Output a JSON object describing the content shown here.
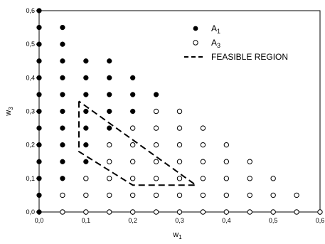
{
  "chart_data": {
    "type": "scatter",
    "title": "",
    "xlabel": "w",
    "xlabel_sub": "1",
    "ylabel": "w",
    "ylabel_sub": "3",
    "xlim": [
      0.0,
      0.6
    ],
    "ylim": [
      0.0,
      0.6
    ],
    "xticks": [
      0.0,
      0.1,
      0.2,
      0.3,
      0.4,
      0.5,
      0.6
    ],
    "yticks": [
      0.0,
      0.1,
      0.2,
      0.3,
      0.4,
      0.5,
      0.6
    ],
    "xtick_labels": [
      "0,0",
      "0,1",
      "0,2",
      "0,3",
      "0,4",
      "0,5",
      "0,6"
    ],
    "ytick_labels": [
      "0,0",
      "0,1",
      "0,2",
      "0,3",
      "0,4",
      "0,5",
      "0,6"
    ],
    "grid": false,
    "legend_position": "top-right",
    "series": [
      {
        "name": "A",
        "name_sub": "1",
        "marker": "filled-circle",
        "color": "#000000",
        "points": [
          [
            0.0,
            0.0
          ],
          [
            0.0,
            0.05
          ],
          [
            0.0,
            0.1
          ],
          [
            0.0,
            0.15
          ],
          [
            0.0,
            0.2
          ],
          [
            0.0,
            0.25
          ],
          [
            0.0,
            0.3
          ],
          [
            0.0,
            0.35
          ],
          [
            0.0,
            0.4
          ],
          [
            0.0,
            0.45
          ],
          [
            0.0,
            0.5
          ],
          [
            0.0,
            0.55
          ],
          [
            0.0,
            0.6
          ],
          [
            0.05,
            0.1
          ],
          [
            0.05,
            0.15
          ],
          [
            0.05,
            0.2
          ],
          [
            0.05,
            0.25
          ],
          [
            0.05,
            0.3
          ],
          [
            0.05,
            0.35
          ],
          [
            0.05,
            0.4
          ],
          [
            0.05,
            0.45
          ],
          [
            0.05,
            0.5
          ],
          [
            0.05,
            0.55
          ],
          [
            0.1,
            0.15
          ],
          [
            0.1,
            0.2
          ],
          [
            0.1,
            0.25
          ],
          [
            0.1,
            0.3
          ],
          [
            0.1,
            0.35
          ],
          [
            0.1,
            0.4
          ],
          [
            0.1,
            0.45
          ],
          [
            0.15,
            0.25
          ],
          [
            0.15,
            0.3
          ],
          [
            0.15,
            0.35
          ],
          [
            0.15,
            0.4
          ],
          [
            0.15,
            0.45
          ],
          [
            0.2,
            0.3
          ],
          [
            0.2,
            0.35
          ],
          [
            0.2,
            0.4
          ],
          [
            0.25,
            0.35
          ]
        ]
      },
      {
        "name": "A",
        "name_sub": "3",
        "marker": "open-circle",
        "color": "#000000",
        "points": [
          [
            0.05,
            0.0
          ],
          [
            0.05,
            0.05
          ],
          [
            0.1,
            0.0
          ],
          [
            0.1,
            0.05
          ],
          [
            0.1,
            0.1
          ],
          [
            0.15,
            0.0
          ],
          [
            0.15,
            0.05
          ],
          [
            0.15,
            0.1
          ],
          [
            0.15,
            0.15
          ],
          [
            0.15,
            0.2
          ],
          [
            0.2,
            0.0
          ],
          [
            0.2,
            0.05
          ],
          [
            0.2,
            0.1
          ],
          [
            0.2,
            0.15
          ],
          [
            0.2,
            0.2
          ],
          [
            0.2,
            0.25
          ],
          [
            0.25,
            0.0
          ],
          [
            0.25,
            0.05
          ],
          [
            0.25,
            0.1
          ],
          [
            0.25,
            0.15
          ],
          [
            0.25,
            0.2
          ],
          [
            0.25,
            0.25
          ],
          [
            0.25,
            0.3
          ],
          [
            0.3,
            0.0
          ],
          [
            0.3,
            0.05
          ],
          [
            0.3,
            0.1
          ],
          [
            0.3,
            0.15
          ],
          [
            0.3,
            0.2
          ],
          [
            0.3,
            0.25
          ],
          [
            0.3,
            0.3
          ],
          [
            0.35,
            0.0
          ],
          [
            0.35,
            0.05
          ],
          [
            0.35,
            0.1
          ],
          [
            0.35,
            0.15
          ],
          [
            0.35,
            0.2
          ],
          [
            0.35,
            0.25
          ],
          [
            0.4,
            0.0
          ],
          [
            0.4,
            0.05
          ],
          [
            0.4,
            0.1
          ],
          [
            0.4,
            0.15
          ],
          [
            0.4,
            0.2
          ],
          [
            0.45,
            0.0
          ],
          [
            0.45,
            0.05
          ],
          [
            0.45,
            0.1
          ],
          [
            0.45,
            0.15
          ],
          [
            0.5,
            0.0
          ],
          [
            0.5,
            0.05
          ],
          [
            0.5,
            0.1
          ],
          [
            0.55,
            0.0
          ],
          [
            0.55,
            0.05
          ],
          [
            0.6,
            0.0
          ]
        ]
      },
      {
        "name": "FEASIBLE REGION",
        "type": "dashed-polygon",
        "color": "#000000",
        "points": [
          [
            0.085,
            0.33
          ],
          [
            0.085,
            0.18
          ],
          [
            0.2,
            0.08
          ],
          [
            0.335,
            0.08
          ]
        ]
      }
    ]
  }
}
